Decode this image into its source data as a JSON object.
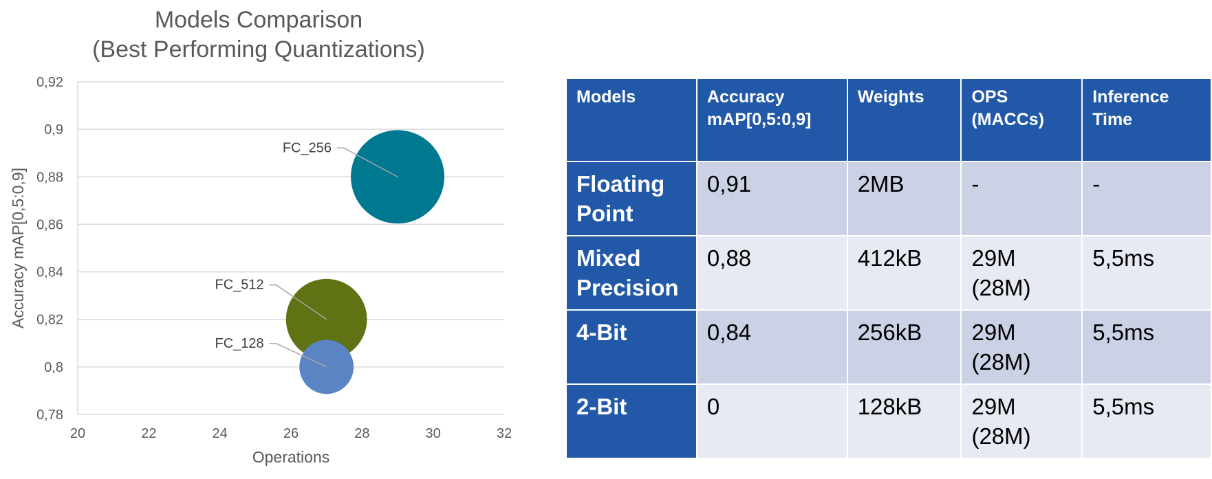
{
  "chart_data": {
    "type": "bubble",
    "title": [
      "Models Comparison",
      "(Best Performing Quantizations)"
    ],
    "xlabel": "Operations",
    "ylabel": "Accuracy mAP[0,5:0,9]",
    "xlim": [
      20,
      32
    ],
    "ylim": [
      0.78,
      0.92
    ],
    "x_ticks": [
      20,
      22,
      24,
      26,
      28,
      30,
      32
    ],
    "y_ticks": [
      "0,78",
      "0,8",
      "0,82",
      "0,84",
      "0,86",
      "0,88",
      "0,9",
      "0,92"
    ],
    "y_tick_values": [
      0.78,
      0.8,
      0.82,
      0.84,
      0.86,
      0.88,
      0.9,
      0.92
    ],
    "grid": "horizontal",
    "points": [
      {
        "label": "FC_256",
        "x": 29,
        "y": 0.88,
        "size": 256,
        "color": "#00788f"
      },
      {
        "label": "FC_512",
        "x": 27,
        "y": 0.82,
        "size": 192,
        "color": "#5f7315"
      },
      {
        "label": "FC_128",
        "x": 27,
        "y": 0.8,
        "size": 86,
        "color": "#5b84c4"
      }
    ]
  },
  "table": {
    "headers": [
      "Models",
      "Accuracy\nmAP[0,5:0,9]",
      "Weights",
      "OPS\n(MACCs)",
      "Inference\nTime"
    ],
    "rows": [
      [
        "Floating\nPoint",
        "0,91",
        "2MB",
        "-",
        "-"
      ],
      [
        "Mixed\nPrecision",
        "0,88",
        "412kB",
        "29M\n(28M)",
        "5,5ms"
      ],
      [
        "4-Bit",
        "0,84",
        "256kB",
        "29M\n(28M)",
        "5,5ms"
      ],
      [
        "2-Bit",
        "0",
        "128kB",
        "29M\n(28M)",
        "5,5ms"
      ]
    ]
  },
  "colors": {
    "header_bg": "#2158a8",
    "row_odd": "#ccd2e5",
    "row_even": "#e8eaf3"
  }
}
